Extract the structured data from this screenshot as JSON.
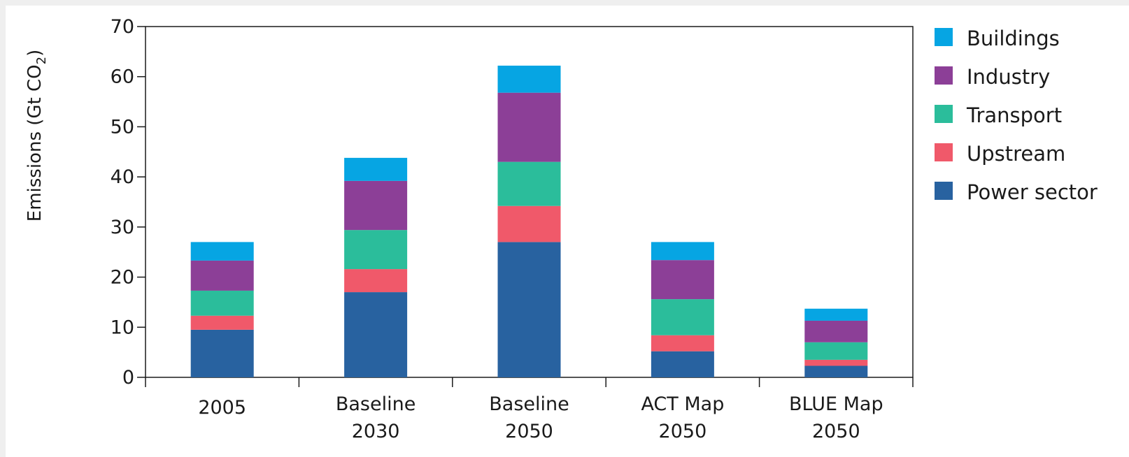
{
  "chart_data": {
    "type": "bar",
    "stacked": true,
    "title": "",
    "xlabel": "",
    "ylabel": "Emissions (Gt CO2)",
    "ylabel_main": "Emissions (Gt CO",
    "ylabel_sub": "2",
    "ylabel_close": ")",
    "ylim": [
      0,
      70
    ],
    "yticks": [
      0,
      10,
      20,
      30,
      40,
      50,
      60,
      70
    ],
    "grid": false,
    "legend_position": "right",
    "categories": [
      [
        "2005"
      ],
      [
        "Baseline",
        "2030"
      ],
      [
        "Baseline",
        "2050"
      ],
      [
        "ACT Map",
        "2050"
      ],
      [
        "BLUE Map",
        "2050"
      ]
    ],
    "series": [
      {
        "name": "Power sector",
        "color": "#2862a0",
        "values": [
          9.5,
          17,
          27,
          5.2,
          2.3
        ]
      },
      {
        "name": "Upstream",
        "color": "#f0596a",
        "values": [
          2.8,
          4.6,
          7.2,
          3.2,
          1.2
        ]
      },
      {
        "name": "Transport",
        "color": "#2bbd9b",
        "values": [
          5,
          7.8,
          8.8,
          7.2,
          3.5
        ]
      },
      {
        "name": "Industry",
        "color": "#8c3f97",
        "values": [
          6,
          9.8,
          13.8,
          7.8,
          4.3
        ]
      },
      {
        "name": "Buildings",
        "color": "#06a5e3",
        "values": [
          3.7,
          4.6,
          5.4,
          3.6,
          2.4
        ]
      }
    ]
  }
}
